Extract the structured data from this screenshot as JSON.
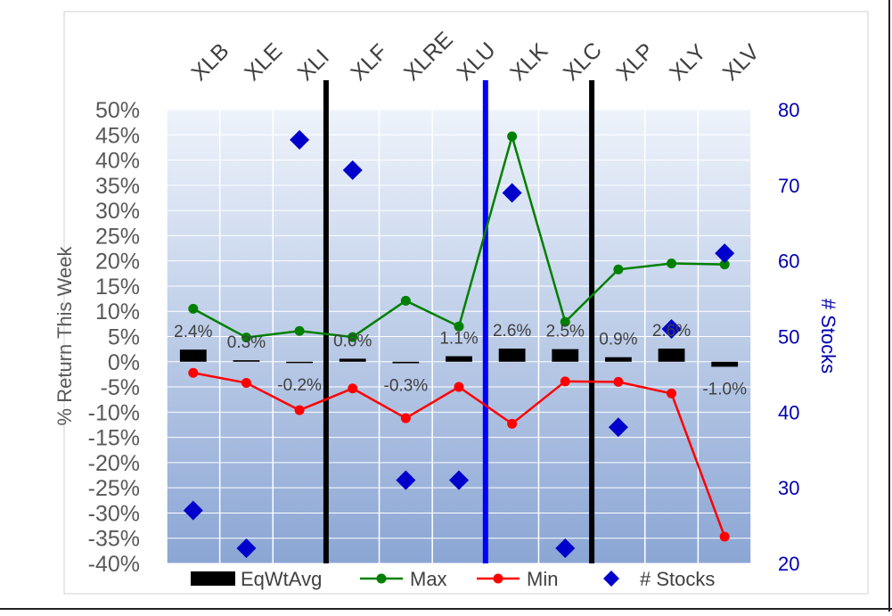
{
  "chart_data": {
    "type": "line",
    "title": "",
    "categories": [
      "XLB",
      "XLE",
      "XLI",
      "XLF",
      "XLRE",
      "XLU",
      "XLK",
      "XLC",
      "XLP",
      "XLY",
      "XLV"
    ],
    "ylabel": "% Return This Week",
    "y2label": "# Stocks",
    "ylim": [
      -0.4,
      0.5
    ],
    "y2lim": [
      20,
      80
    ],
    "y_ticks": [
      "50%",
      "45%",
      "40%",
      "35%",
      "30%",
      "25%",
      "20%",
      "15%",
      "10%",
      "5%",
      "0%",
      "-5%",
      "-10%",
      "-15%",
      "-20%",
      "-25%",
      "-30%",
      "-35%",
      "-40%"
    ],
    "y2_ticks": [
      "80",
      "70",
      "60",
      "50",
      "40",
      "30",
      "20"
    ],
    "grid": true,
    "legend_position": "bottom",
    "series": [
      {
        "name": "EqWtAvg",
        "kind": "bar",
        "color": "#000000",
        "values": [
          0.024,
          0.003,
          -0.002,
          0.006,
          -0.003,
          0.011,
          0.026,
          0.025,
          0.009,
          0.026,
          -0.01
        ],
        "labels": [
          "2.4%",
          "0.3%",
          "-0.2%",
          "0.6%",
          "-0.3%",
          "1.1%",
          "2.6%",
          "2.5%",
          "0.9%",
          "2.6%",
          "-1.0%"
        ]
      },
      {
        "name": "Max",
        "kind": "line",
        "color": "#008000",
        "values": [
          0.105,
          0.048,
          0.061,
          0.049,
          0.121,
          0.07,
          0.447,
          0.079,
          0.183,
          0.195,
          0.193
        ]
      },
      {
        "name": "Min",
        "kind": "line",
        "color": "#ff0000",
        "values": [
          -0.022,
          -0.042,
          -0.096,
          -0.053,
          -0.112,
          -0.05,
          -0.123,
          -0.039,
          -0.04,
          -0.063,
          -0.347
        ]
      },
      {
        "name": "# Stocks",
        "kind": "scatter",
        "axis": "secondary",
        "color": "#0000cc",
        "values": [
          27,
          22,
          76,
          72,
          31,
          31,
          69,
          22,
          38,
          51,
          61
        ]
      }
    ],
    "dividers": [
      {
        "after": "XLI",
        "color": "#000000"
      },
      {
        "after": "XLU",
        "color": "#0000ff"
      },
      {
        "after": "XLC",
        "color": "#000000"
      }
    ]
  }
}
